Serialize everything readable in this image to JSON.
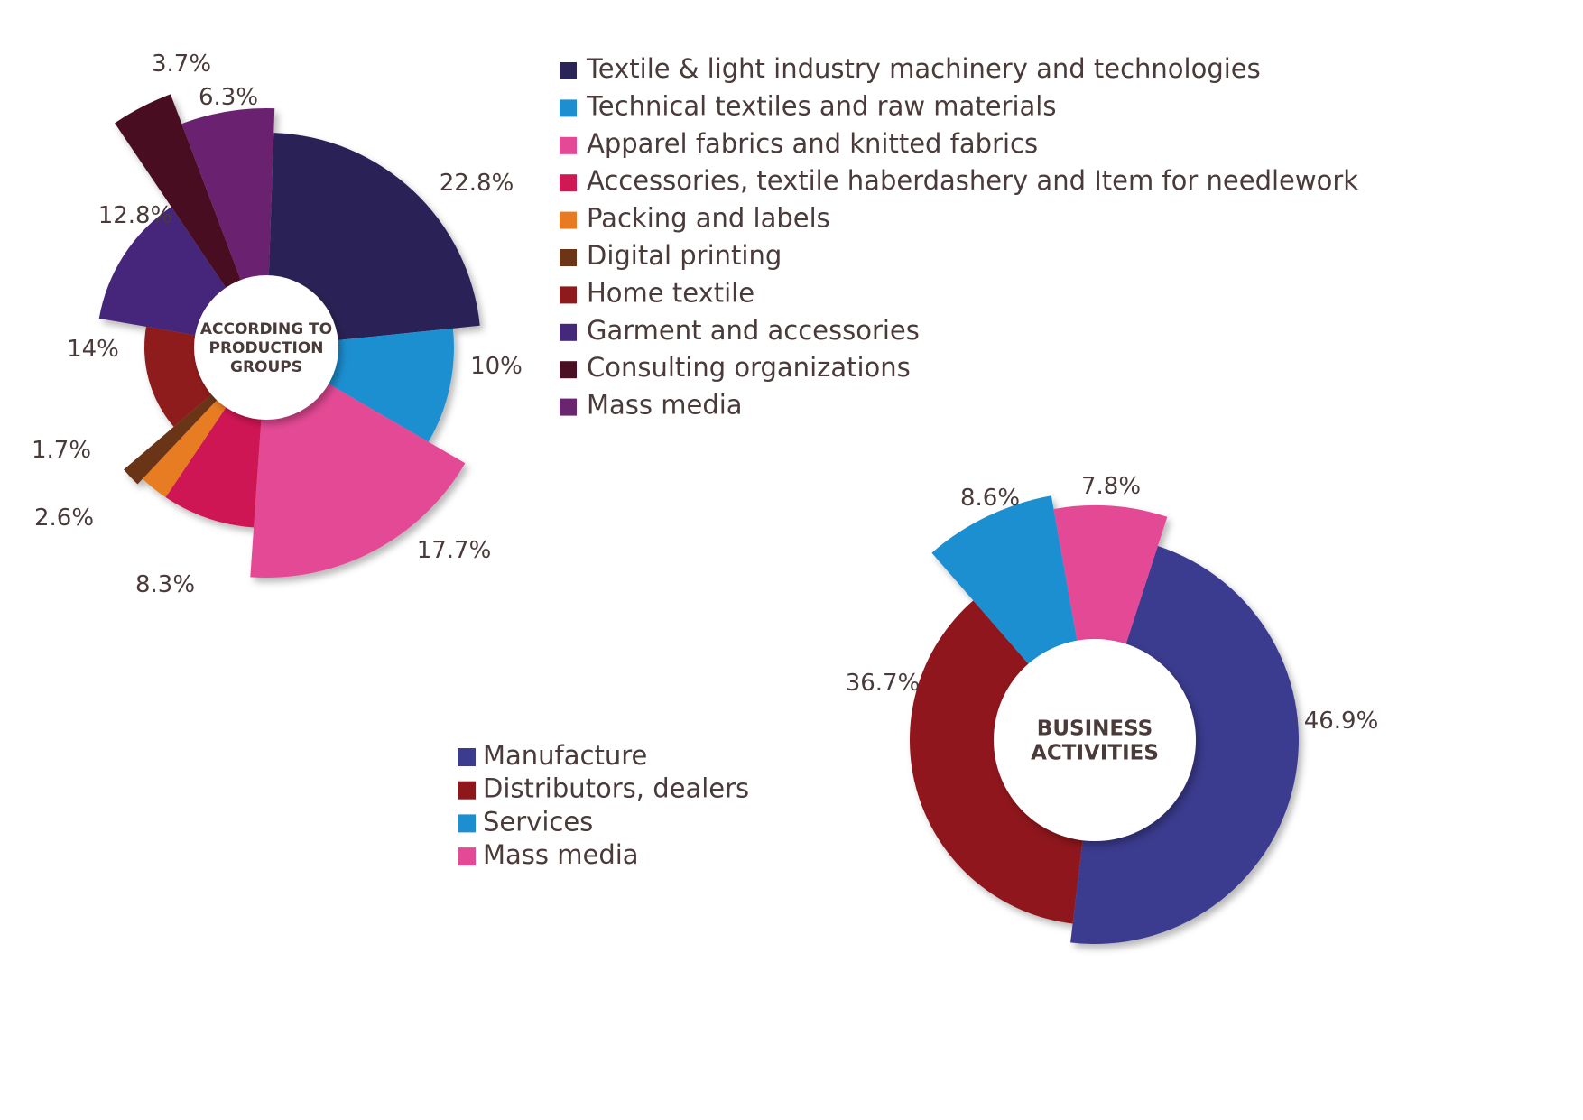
{
  "chart_data": [
    {
      "type": "pie",
      "title": "ACCORDING TO PRODUCTION GROUPS",
      "center_label_lines": [
        "ACCORDING TO",
        "PRODUCTION",
        "GROUPS"
      ],
      "start_angle_deg": 2,
      "slices": [
        {
          "name": "Textile & light industry machinery and technologies",
          "value": 22.8,
          "label": "22.8%",
          "color": "#2b2456"
        },
        {
          "name": "Technical textiles and raw materials",
          "value": 10,
          "label": "10%",
          "color": "#1d8fd1"
        },
        {
          "name": "Apparel fabrics and knitted fabrics",
          "value": 17.7,
          "label": "17.7%",
          "color": "#e44995"
        },
        {
          "name": "Accessories, textile haberdashery and Item for needlework",
          "value": 8.3,
          "label": "8.3%",
          "color": "#cf1954"
        },
        {
          "name": "Packing and labels",
          "value": 2.6,
          "label": "2.6%",
          "color": "#e87b22"
        },
        {
          "name": "Digital printing",
          "value": 1.7,
          "label": "1.7%",
          "color": "#6b3516"
        },
        {
          "name": "Home textile",
          "value": 14,
          "label": "14%",
          "color": "#8e1a1d"
        },
        {
          "name": "Garment and accessories",
          "value": 12.8,
          "label": "12.8%",
          "color": "#44287a"
        },
        {
          "name": "Consulting organizations",
          "value": 3.7,
          "label": "3.7%",
          "color": "#4a0f22"
        },
        {
          "name": "Mass media",
          "value": 6.3,
          "label": "6.3%",
          "color": "#6a2470"
        }
      ],
      "legend": {
        "placement": "right",
        "items": [
          "Textile & light industry machinery and technologies",
          "Technical textiles and raw materials",
          "Apparel fabrics and knitted fabrics",
          "Accessories, textile haberdashery and Item for needlework",
          "Packing and labels",
          "Digital printing",
          "Home textile",
          "Garment and accessories",
          "Consulting organizations",
          "Mass media"
        ]
      }
    },
    {
      "type": "pie",
      "title": "BUSINESS ACTIVITIES",
      "center_label_lines": [
        "BUSINESS",
        "ACTIVITIES"
      ],
      "start_angle_deg": 18,
      "slices": [
        {
          "name": "Manufacture",
          "value": 46.9,
          "label": "46.9%",
          "color": "#3b3b8f"
        },
        {
          "name": "Distributors, dealers",
          "value": 36.7,
          "label": "36.7%",
          "color": "#8e171c"
        },
        {
          "name": "Services",
          "value": 8.6,
          "label": "8.6%",
          "color": "#1d8fd1"
        },
        {
          "name": "Mass media",
          "value": 7.8,
          "label": "7.8%",
          "color": "#e44995"
        }
      ],
      "legend": {
        "placement": "left",
        "items": [
          "Manufacture",
          "Distributors, dealers",
          "Services",
          "Mass media"
        ]
      }
    }
  ]
}
